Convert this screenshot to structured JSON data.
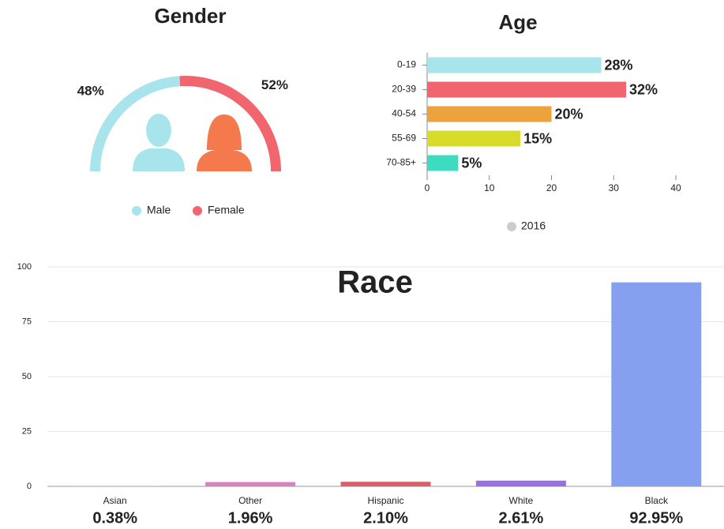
{
  "chart_data": [
    {
      "type": "pie",
      "title": "Gender",
      "categories": [
        "Male",
        "Female"
      ],
      "values": [
        48,
        52
      ],
      "value_labels": [
        "48%",
        "52%"
      ],
      "colors": [
        "#a8e4ec",
        "#f0656e"
      ],
      "legend": "bottom"
    },
    {
      "type": "barh",
      "title": "Age",
      "categories": [
        "0-19",
        "20-39",
        "40-54",
        "55-69",
        "70-85+"
      ],
      "series": [
        {
          "name": "2016",
          "color": "#cccccc",
          "values": [
            28,
            32,
            20,
            15,
            5
          ],
          "value_labels": [
            "28%",
            "32%",
            "20%",
            "15%",
            "5%"
          ],
          "colors": [
            "#a8e4ec",
            "#f0656e",
            "#eea23c",
            "#d7dc2a",
            "#3ddcc0"
          ]
        }
      ],
      "xlim": [
        0,
        40
      ],
      "xticks": [
        0,
        10,
        20,
        30,
        40
      ],
      "legend": "bottom"
    },
    {
      "type": "bar",
      "title": "Race",
      "categories": [
        "Asian",
        "Other",
        "Hispanic",
        "White",
        "Black"
      ],
      "values": [
        0.38,
        1.96,
        2.1,
        2.61,
        92.95
      ],
      "value_labels": [
        "0.38%",
        "1.96%",
        "2.10%",
        "2.61%",
        "92.95%"
      ],
      "colors": [
        "#a8e4ec",
        "#d982c3",
        "#d9606a",
        "#9b6fe0",
        "#86a0f0"
      ],
      "ylim": [
        0,
        100
      ],
      "yticks": [
        0,
        25,
        50,
        75,
        100
      ],
      "grid": true
    }
  ]
}
